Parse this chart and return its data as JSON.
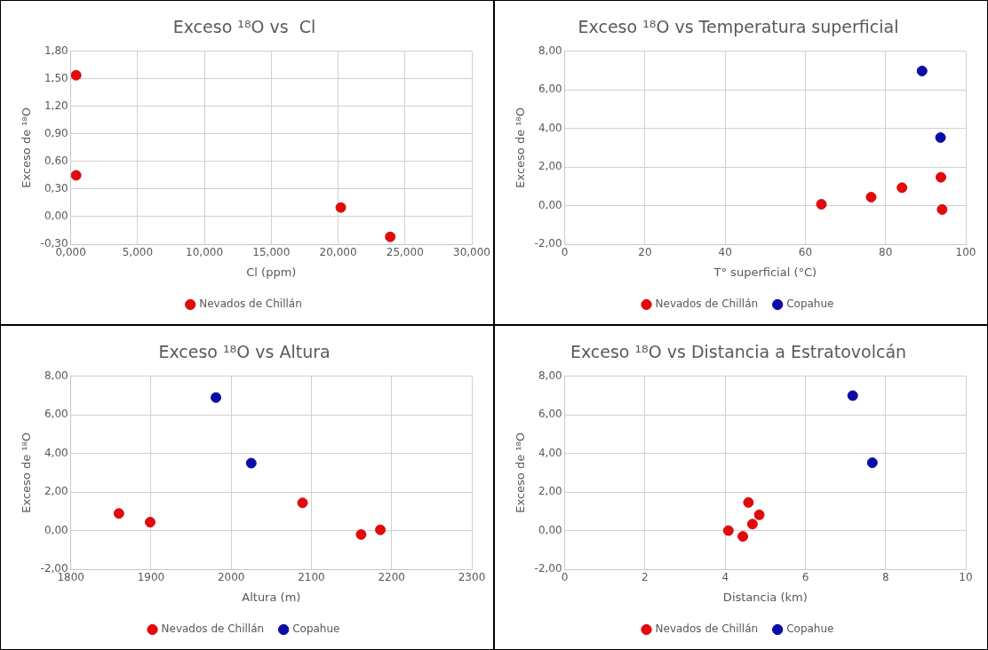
{
  "chart_data": [
    {
      "type": "scatter",
      "title": "Exceso ¹⁸O vs  Cl",
      "xlabel": "Cl (ppm)",
      "ylabel": "Exceso de ¹⁸O",
      "grid": true,
      "legend": "bottom",
      "marker": "circle",
      "series": [
        {
          "name": "Nevados de Chillán",
          "color": "#e00b0b",
          "x": [
            0.4,
            0.4,
            20.2,
            23.9
          ],
          "values": [
            1.54,
            0.45,
            0.1,
            -0.22
          ]
        }
      ],
      "xlim": [
        0,
        30
      ],
      "xticks": [
        {
          "value": 0,
          "label": "0,000"
        },
        {
          "value": 5,
          "label": "5,000"
        },
        {
          "value": 10,
          "label": "10,000"
        },
        {
          "value": 15,
          "label": "15,000"
        },
        {
          "value": 20,
          "label": "20,000"
        },
        {
          "value": 25,
          "label": "25,000"
        },
        {
          "value": 30,
          "label": "30,000"
        }
      ],
      "ylim": [
        -0.3,
        1.8
      ],
      "yticks": [
        {
          "value": -0.3,
          "label": "-0,30"
        },
        {
          "value": 0,
          "label": "0,00"
        },
        {
          "value": 0.3,
          "label": "0,30"
        },
        {
          "value": 0.6,
          "label": "0,60"
        },
        {
          "value": 0.9,
          "label": "0,90"
        },
        {
          "value": 1.2,
          "label": "1,20"
        },
        {
          "value": 1.5,
          "label": "1,50"
        },
        {
          "value": 1.8,
          "label": "1,80"
        }
      ]
    },
    {
      "type": "scatter",
      "title": "Exceso ¹⁸O vs Temperatura superficial",
      "xlabel": "T° superficial (°C)",
      "ylabel": "Exceso de ¹⁸O",
      "grid": true,
      "legend": "bottom",
      "marker": "circle",
      "series": [
        {
          "name": "Nevados de Chillán",
          "color": "#e00b0b",
          "x": [
            64,
            76.4,
            84.1,
            93.8,
            94.1
          ],
          "values": [
            0.07,
            0.44,
            0.93,
            1.47,
            -0.2
          ]
        },
        {
          "name": "Copahue",
          "color": "#0c0ca8",
          "x": [
            89.1,
            93.7
          ],
          "values": [
            6.98,
            3.53
          ]
        }
      ],
      "xlim": [
        0,
        100
      ],
      "xticks": [
        0,
        20,
        40,
        60,
        80,
        100
      ],
      "ylim": [
        -2,
        8
      ],
      "yticks": [
        {
          "value": -2,
          "label": "-2,00"
        },
        {
          "value": 0,
          "label": "0,00"
        },
        {
          "value": 2,
          "label": "2,00"
        },
        {
          "value": 4,
          "label": "4,00"
        },
        {
          "value": 6,
          "label": "6,00"
        },
        {
          "value": 8,
          "label": "8,00"
        }
      ]
    },
    {
      "type": "scatter",
      "title": "Exceso ¹⁸O vs Altura",
      "xlabel": "Altura (m)",
      "ylabel": "Exceso de ¹⁸O",
      "grid": true,
      "legend": "bottom",
      "marker": "circle",
      "series": [
        {
          "name": "Nevados de Chillán",
          "color": "#e00b0b",
          "x": [
            1860,
            1899,
            2089,
            2162,
            2186
          ],
          "values": [
            0.89,
            0.44,
            1.44,
            -0.2,
            0.04
          ]
        },
        {
          "name": "Copahue",
          "color": "#0c0ca8",
          "x": [
            1981,
            2025
          ],
          "values": [
            6.9,
            3.5
          ]
        }
      ],
      "xlim": [
        1800,
        2300
      ],
      "xticks": [
        1800,
        1900,
        2000,
        2100,
        2200,
        2300
      ],
      "ylim": [
        -2,
        8
      ],
      "yticks": [
        {
          "value": -2,
          "label": "-2,00"
        },
        {
          "value": 0,
          "label": "0,00"
        },
        {
          "value": 2,
          "label": "2,00"
        },
        {
          "value": 4,
          "label": "4,00"
        },
        {
          "value": 6,
          "label": "6,00"
        },
        {
          "value": 8,
          "label": "8,00"
        }
      ]
    },
    {
      "type": "scatter",
      "title": "Exceso ¹⁸O vs Distancia a Estratovolcán",
      "xlabel": "Distancia (km)",
      "ylabel": "Exceso de ¹⁸O",
      "grid": true,
      "legend": "bottom",
      "marker": "circle",
      "series": [
        {
          "name": "Nevados de Chillán",
          "color": "#e00b0b",
          "x": [
            4.08,
            4.44,
            4.58,
            4.68,
            4.85
          ],
          "values": [
            0,
            -0.3,
            1.46,
            0.34,
            0.82
          ]
        },
        {
          "name": "Copahue",
          "color": "#0c0ca8",
          "x": [
            7.18,
            7.67
          ],
          "values": [
            7,
            3.52
          ]
        }
      ],
      "xlim": [
        0,
        10
      ],
      "xticks": [
        0,
        2,
        4,
        6,
        8,
        10
      ],
      "ylim": [
        -2,
        8
      ],
      "yticks": [
        {
          "value": -2,
          "label": "-2,00"
        },
        {
          "value": 0,
          "label": "0,00"
        },
        {
          "value": 2,
          "label": "2,00"
        },
        {
          "value": 4,
          "label": "4,00"
        },
        {
          "value": 6,
          "label": "6,00"
        },
        {
          "value": 8,
          "label": "8,00"
        }
      ]
    }
  ]
}
